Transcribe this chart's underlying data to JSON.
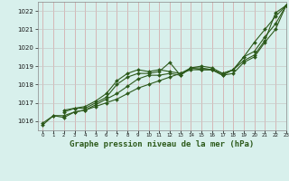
{
  "title": "Graphe pression niveau de la mer (hPa)",
  "bg_color": "#d8f0ec",
  "grid_color_v": "#d4a0a0",
  "grid_color_h": "#c8c8c8",
  "line_color": "#2d5a1b",
  "xlim": [
    -0.5,
    23
  ],
  "ylim": [
    1015.5,
    1022.5
  ],
  "yticks": [
    1016,
    1017,
    1018,
    1019,
    1020,
    1021,
    1022
  ],
  "xticks": [
    0,
    1,
    2,
    3,
    4,
    5,
    6,
    7,
    8,
    9,
    10,
    11,
    12,
    13,
    14,
    15,
    16,
    17,
    18,
    19,
    20,
    21,
    22,
    23
  ],
  "series": [
    {
      "x": [
        0,
        1,
        2,
        3,
        4,
        5,
        6,
        7,
        8,
        9,
        10,
        11,
        12,
        13,
        14,
        15,
        16,
        17,
        18,
        19,
        20,
        21,
        22,
        23
      ],
      "y": [
        1015.8,
        1016.3,
        1016.2,
        1016.5,
        1016.6,
        1016.8,
        1017.0,
        1017.2,
        1017.5,
        1017.8,
        1018.0,
        1018.2,
        1018.4,
        1018.6,
        1018.8,
        1018.8,
        1018.8,
        1018.6,
        1018.8,
        1019.5,
        1020.3,
        1021.0,
        1021.7,
        1022.3
      ]
    },
    {
      "x": [
        0,
        1,
        2,
        3,
        4,
        5,
        6,
        7,
        8,
        9,
        10,
        11,
        12,
        13,
        14,
        15,
        16,
        17,
        18,
        19,
        20,
        21,
        22,
        23
      ],
      "y": [
        1015.9,
        1016.3,
        1016.3,
        1016.5,
        1016.6,
        1016.9,
        1017.2,
        1017.5,
        1017.9,
        1018.3,
        1018.5,
        1018.5,
        1018.6,
        1018.5,
        1018.9,
        1018.9,
        1018.8,
        1018.5,
        1018.8,
        1019.3,
        1019.6,
        1020.4,
        1021.9,
        1022.3
      ]
    },
    {
      "x": [
        2,
        3,
        4,
        5,
        6,
        7,
        8,
        9,
        10,
        11,
        12,
        13,
        14,
        15,
        16,
        17,
        18,
        19,
        20,
        21,
        22,
        23
      ],
      "y": [
        1016.5,
        1016.7,
        1016.7,
        1017.0,
        1017.3,
        1018.0,
        1018.4,
        1018.6,
        1018.6,
        1018.7,
        1019.2,
        1018.5,
        1018.9,
        1018.8,
        1018.8,
        1018.5,
        1018.6,
        1019.2,
        1019.5,
        1020.3,
        1021.0,
        1022.3
      ]
    },
    {
      "x": [
        2,
        3,
        4,
        5,
        6,
        7,
        8,
        9,
        10,
        11,
        12,
        13,
        14,
        15,
        16,
        17,
        18,
        19,
        20,
        21,
        22,
        23
      ],
      "y": [
        1016.6,
        1016.7,
        1016.8,
        1017.1,
        1017.5,
        1018.2,
        1018.6,
        1018.8,
        1018.7,
        1018.8,
        1018.7,
        1018.6,
        1018.9,
        1019.0,
        1018.9,
        1018.6,
        1018.8,
        1019.5,
        1019.8,
        1020.6,
        1021.3,
        1022.3
      ]
    }
  ]
}
